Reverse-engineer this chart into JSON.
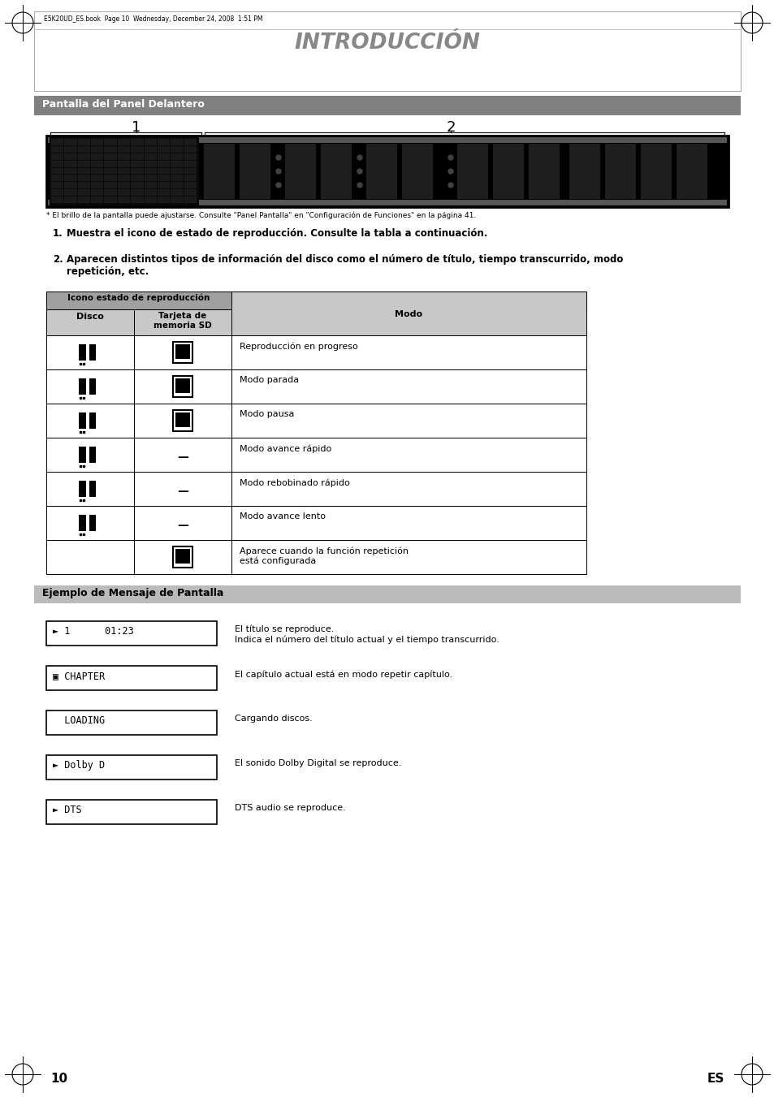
{
  "title": "INTRODUCCIÓN",
  "section1_title": "Pantalla del Panel Delantero",
  "section2_title": "Ejemplo de Mensaje de Pantalla",
  "page_bg": "#ffffff",
  "top_note": "E5K20UD_ES.book  Page 10  Wednesday, December 24, 2008  1:51 PM",
  "display_note": "* El brillo de la pantalla puede ajustarse. Consulte \"Panel Pantalla\" en \"Configuración de Funciones\" en la página 41.",
  "numbered_items": [
    "Muestra el icono de estado de reproducción. Consulte la tabla a continuación.",
    "Aparecen distintos tipos de información del disco como el número de título, tiempo transcurrido, modo\nrepetición, etc."
  ],
  "table_header_span": "Icono estado de reproducción",
  "table_col_disco": "Disco",
  "table_col_sd": "Tarjeta de\nmemoria SD",
  "table_col_modo": "Modo",
  "table_rows": [
    {
      "has_disco": true,
      "has_sd": true,
      "modo": "Reproducción en progreso"
    },
    {
      "has_disco": true,
      "has_sd": true,
      "modo": "Modo parada"
    },
    {
      "has_disco": true,
      "has_sd": true,
      "modo": "Modo pausa"
    },
    {
      "has_disco": true,
      "has_sd": false,
      "modo": "Modo avance rápido"
    },
    {
      "has_disco": true,
      "has_sd": false,
      "modo": "Modo rebobinado rápido"
    },
    {
      "has_disco": true,
      "has_sd": false,
      "modo": "Modo avance lento"
    },
    {
      "has_disco": false,
      "has_sd": true,
      "modo": "Aparece cuando la función repetición\nestá configurada"
    }
  ],
  "display_examples": [
    {
      "text": "► 1      01:23",
      "desc": "El título se reproduce.\nIndica el número del título actual y el tiempo transcurrido."
    },
    {
      "text": "▣ CHAPTER",
      "desc": "El capítulo actual está en modo repetir capítulo."
    },
    {
      "text": "  LOADING",
      "desc": "Cargando discos."
    },
    {
      "text": "► Dolby D",
      "desc": "El sonido Dolby Digital se reproduce."
    },
    {
      "text": "► DTS",
      "desc": "DTS audio se reproduce."
    }
  ],
  "page_number": "10",
  "page_lang": "ES"
}
